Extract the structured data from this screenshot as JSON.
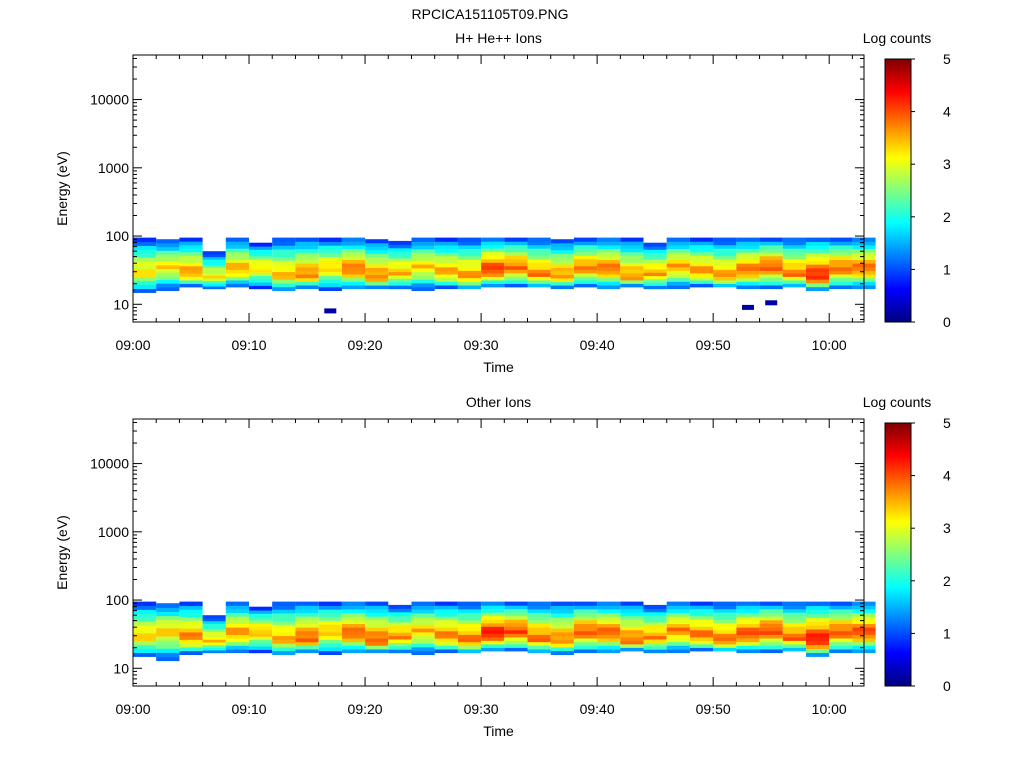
{
  "figure": {
    "title": "RPCICA151105T09.PNG"
  },
  "chart_data": [
    {
      "type": "heatmap",
      "title": "H+ He++ Ions",
      "xlabel": "Time",
      "ylabel": "Energy (eV)",
      "x_scale": "time",
      "x_range": [
        "09:00",
        "10:03"
      ],
      "x_ticks": [
        "09:00",
        "09:10",
        "09:20",
        "09:30",
        "09:40",
        "09:50",
        "10:00"
      ],
      "y_scale": "log",
      "y_range": [
        5.5,
        45000
      ],
      "y_ticks": [
        10,
        100,
        1000,
        10000
      ],
      "y_tick_labels": [
        "10",
        "100",
        "1000",
        "10000"
      ],
      "colorbar": {
        "label": "Log counts",
        "range": [
          0,
          5
        ],
        "ticks": [
          "0",
          "1",
          "2",
          "3",
          "4",
          "5"
        ],
        "colormap": "jet"
      },
      "energy_band_ev": [
        15,
        95
      ],
      "isolated_points": [
        {
          "time": "09:17",
          "energy_ev": 8,
          "log_counts": 0.2
        },
        {
          "time": "09:53",
          "energy_ev": 9,
          "log_counts": 0.2
        },
        {
          "time": "09:55",
          "energy_ev": 10.5,
          "log_counts": 0.2
        }
      ],
      "time_columns": [
        {
          "time": "09:01",
          "energy_ev": [
            15,
            95
          ],
          "peak_log_counts": 3.3
        },
        {
          "time": "09:03",
          "energy_ev": [
            16,
            90
          ],
          "peak_log_counts": 3.3
        },
        {
          "time": "09:05",
          "energy_ev": [
            18,
            95
          ],
          "peak_log_counts": 3.7
        },
        {
          "time": "09:07",
          "energy_ev": [
            17,
            60
          ],
          "peak_log_counts": 3.2
        },
        {
          "time": "09:09",
          "energy_ev": [
            18,
            95
          ],
          "peak_log_counts": 3.6
        },
        {
          "time": "09:11",
          "energy_ev": [
            17,
            80
          ],
          "peak_log_counts": 3.3
        },
        {
          "time": "09:13",
          "energy_ev": [
            16,
            95
          ],
          "peak_log_counts": 3.5
        },
        {
          "time": "09:15",
          "energy_ev": [
            17,
            95
          ],
          "peak_log_counts": 3.8
        },
        {
          "time": "09:17",
          "energy_ev": [
            16,
            95
          ],
          "peak_log_counts": 3.4
        },
        {
          "time": "09:19",
          "energy_ev": [
            17,
            95
          ],
          "peak_log_counts": 3.9
        },
        {
          "time": "09:21",
          "energy_ev": [
            17,
            90
          ],
          "peak_log_counts": 3.8
        },
        {
          "time": "09:23",
          "energy_ev": [
            17,
            85
          ],
          "peak_log_counts": 3.5
        },
        {
          "time": "09:25",
          "energy_ev": [
            16,
            95
          ],
          "peak_log_counts": 3.4
        },
        {
          "time": "09:27",
          "energy_ev": [
            17,
            95
          ],
          "peak_log_counts": 3.6
        },
        {
          "time": "09:29",
          "energy_ev": [
            17,
            95
          ],
          "peak_log_counts": 3.7
        },
        {
          "time": "09:31",
          "energy_ev": [
            18,
            95
          ],
          "peak_log_counts": 4.2
        },
        {
          "time": "09:33",
          "energy_ev": [
            18,
            95
          ],
          "peak_log_counts": 3.9
        },
        {
          "time": "09:35",
          "energy_ev": [
            18,
            95
          ],
          "peak_log_counts": 3.8
        },
        {
          "time": "09:37",
          "energy_ev": [
            17,
            90
          ],
          "peak_log_counts": 3.7
        },
        {
          "time": "09:39",
          "energy_ev": [
            18,
            95
          ],
          "peak_log_counts": 3.8
        },
        {
          "time": "09:41",
          "energy_ev": [
            17,
            95
          ],
          "peak_log_counts": 3.9
        },
        {
          "time": "09:43",
          "energy_ev": [
            18,
            95
          ],
          "peak_log_counts": 3.7
        },
        {
          "time": "09:45",
          "energy_ev": [
            17,
            80
          ],
          "peak_log_counts": 3.6
        },
        {
          "time": "09:47",
          "energy_ev": [
            17,
            95
          ],
          "peak_log_counts": 3.6
        },
        {
          "time": "09:49",
          "energy_ev": [
            18,
            95
          ],
          "peak_log_counts": 3.7
        },
        {
          "time": "09:51",
          "energy_ev": [
            18,
            95
          ],
          "peak_log_counts": 3.7
        },
        {
          "time": "09:53",
          "energy_ev": [
            17,
            95
          ],
          "peak_log_counts": 3.9
        },
        {
          "time": "09:55",
          "energy_ev": [
            17,
            95
          ],
          "peak_log_counts": 4.0
        },
        {
          "time": "09:57",
          "energy_ev": [
            18,
            95
          ],
          "peak_log_counts": 3.8
        },
        {
          "time": "09:59",
          "energy_ev": [
            16,
            95
          ],
          "peak_log_counts": 4.3
        },
        {
          "time": "10:01",
          "energy_ev": [
            17,
            95
          ],
          "peak_log_counts": 3.9
        },
        {
          "time": "10:03",
          "energy_ev": [
            17,
            95
          ],
          "peak_log_counts": 3.9
        }
      ]
    },
    {
      "type": "heatmap",
      "title": "Other Ions",
      "xlabel": "Time",
      "ylabel": "Energy (eV)",
      "x_scale": "time",
      "x_range": [
        "09:00",
        "10:03"
      ],
      "x_ticks": [
        "09:00",
        "09:10",
        "09:20",
        "09:30",
        "09:40",
        "09:50",
        "10:00"
      ],
      "y_scale": "log",
      "y_range": [
        5.5,
        45000
      ],
      "y_ticks": [
        10,
        100,
        1000,
        10000
      ],
      "y_tick_labels": [
        "10",
        "100",
        "1000",
        "10000"
      ],
      "colorbar": {
        "label": "Log counts",
        "range": [
          0,
          5
        ],
        "ticks": [
          "0",
          "1",
          "2",
          "3",
          "4",
          "5"
        ],
        "colormap": "jet"
      },
      "energy_band_ev": [
        13,
        95
      ],
      "isolated_points": [],
      "time_columns": [
        {
          "time": "09:01",
          "energy_ev": [
            15,
            95
          ],
          "peak_log_counts": 3.4
        },
        {
          "time": "09:03",
          "energy_ev": [
            13,
            90
          ],
          "peak_log_counts": 3.4
        },
        {
          "time": "09:05",
          "energy_ev": [
            16,
            95
          ],
          "peak_log_counts": 3.8
        },
        {
          "time": "09:07",
          "energy_ev": [
            17,
            60
          ],
          "peak_log_counts": 3.4
        },
        {
          "time": "09:09",
          "energy_ev": [
            17,
            95
          ],
          "peak_log_counts": 3.7
        },
        {
          "time": "09:11",
          "energy_ev": [
            17,
            80
          ],
          "peak_log_counts": 3.5
        },
        {
          "time": "09:13",
          "energy_ev": [
            16,
            95
          ],
          "peak_log_counts": 3.6
        },
        {
          "time": "09:15",
          "energy_ev": [
            17,
            95
          ],
          "peak_log_counts": 4.0
        },
        {
          "time": "09:17",
          "energy_ev": [
            16,
            95
          ],
          "peak_log_counts": 3.5
        },
        {
          "time": "09:19",
          "energy_ev": [
            17,
            95
          ],
          "peak_log_counts": 4.0
        },
        {
          "time": "09:21",
          "energy_ev": [
            17,
            95
          ],
          "peak_log_counts": 4.0
        },
        {
          "time": "09:23",
          "energy_ev": [
            17,
            85
          ],
          "peak_log_counts": 3.7
        },
        {
          "time": "09:25",
          "energy_ev": [
            16,
            95
          ],
          "peak_log_counts": 3.5
        },
        {
          "time": "09:27",
          "energy_ev": [
            17,
            95
          ],
          "peak_log_counts": 3.8
        },
        {
          "time": "09:29",
          "energy_ev": [
            17,
            95
          ],
          "peak_log_counts": 3.9
        },
        {
          "time": "09:31",
          "energy_ev": [
            18,
            95
          ],
          "peak_log_counts": 4.4
        },
        {
          "time": "09:33",
          "energy_ev": [
            18,
            95
          ],
          "peak_log_counts": 4.1
        },
        {
          "time": "09:35",
          "energy_ev": [
            17,
            95
          ],
          "peak_log_counts": 3.9
        },
        {
          "time": "09:37",
          "energy_ev": [
            16,
            95
          ],
          "peak_log_counts": 3.8
        },
        {
          "time": "09:39",
          "energy_ev": [
            17,
            95
          ],
          "peak_log_counts": 4.0
        },
        {
          "time": "09:41",
          "energy_ev": [
            17,
            95
          ],
          "peak_log_counts": 4.0
        },
        {
          "time": "09:43",
          "energy_ev": [
            18,
            95
          ],
          "peak_log_counts": 3.9
        },
        {
          "time": "09:45",
          "energy_ev": [
            17,
            85
          ],
          "peak_log_counts": 3.7
        },
        {
          "time": "09:47",
          "energy_ev": [
            17,
            95
          ],
          "peak_log_counts": 3.8
        },
        {
          "time": "09:49",
          "energy_ev": [
            18,
            95
          ],
          "peak_log_counts": 3.9
        },
        {
          "time": "09:51",
          "energy_ev": [
            18,
            95
          ],
          "peak_log_counts": 3.9
        },
        {
          "time": "09:53",
          "energy_ev": [
            17,
            95
          ],
          "peak_log_counts": 4.1
        },
        {
          "time": "09:55",
          "energy_ev": [
            17,
            95
          ],
          "peak_log_counts": 4.1
        },
        {
          "time": "09:57",
          "energy_ev": [
            18,
            95
          ],
          "peak_log_counts": 3.9
        },
        {
          "time": "09:59",
          "energy_ev": [
            15,
            95
          ],
          "peak_log_counts": 4.4
        },
        {
          "time": "10:01",
          "energy_ev": [
            17,
            95
          ],
          "peak_log_counts": 4.0
        },
        {
          "time": "10:03",
          "energy_ev": [
            17,
            95
          ],
          "peak_log_counts": 4.1
        }
      ]
    }
  ]
}
